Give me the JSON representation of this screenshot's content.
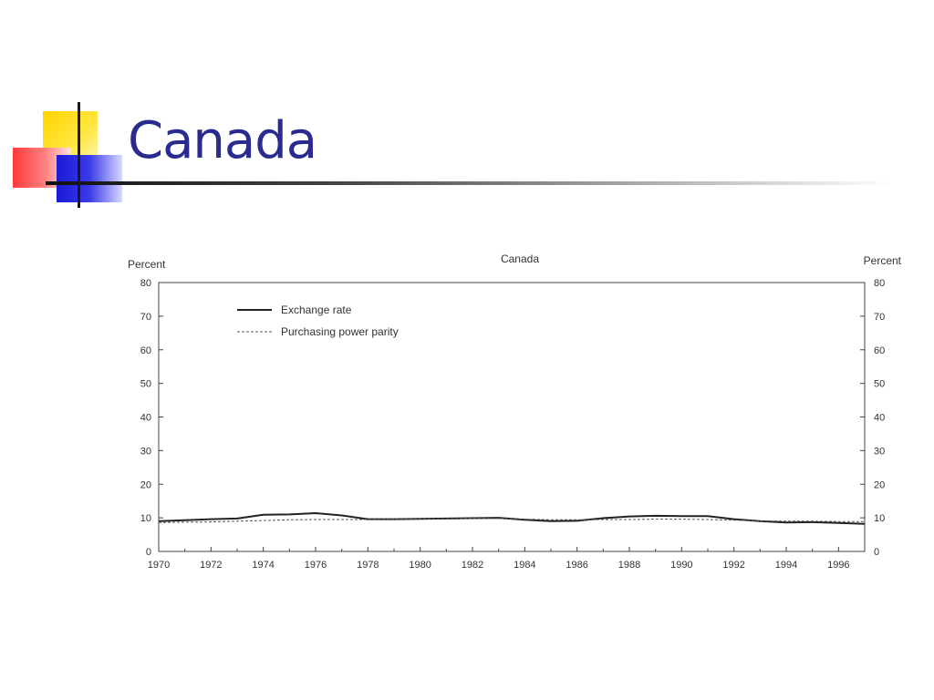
{
  "slide": {
    "title": "Canada"
  },
  "logo": {
    "colors": {
      "yellow": "#ffd400",
      "red": "#ff3a3a",
      "blue": "#1a1ad8"
    }
  },
  "chart_data": {
    "type": "line",
    "title": "Canada",
    "ylabel_left": "Percent",
    "ylabel_right": "Percent",
    "xlabel": "",
    "ylim": [
      0,
      80
    ],
    "xlim": [
      1970,
      1997
    ],
    "yticks": [
      "0",
      "10",
      "20",
      "30",
      "40",
      "50",
      "60",
      "70",
      "80"
    ],
    "xticks": [
      "1970",
      "1972",
      "1974",
      "1976",
      "1978",
      "1980",
      "1982",
      "1984",
      "1986",
      "1988",
      "1990",
      "1992",
      "1994",
      "1996"
    ],
    "grid": false,
    "legend_position": "top-left",
    "series": [
      {
        "name": "Exchange rate",
        "style": "solid",
        "color": "#222222",
        "x": [
          1970,
          1971,
          1972,
          1973,
          1974,
          1975,
          1976,
          1977,
          1978,
          1979,
          1980,
          1981,
          1982,
          1983,
          1984,
          1985,
          1986,
          1987,
          1988,
          1989,
          1990,
          1991,
          1992,
          1993,
          1994,
          1995,
          1996,
          1997
        ],
        "values": [
          9.0,
          9.3,
          9.6,
          9.8,
          10.9,
          11.0,
          11.4,
          10.7,
          9.6,
          9.6,
          9.7,
          9.8,
          9.9,
          10.0,
          9.4,
          9.0,
          9.1,
          9.9,
          10.4,
          10.6,
          10.5,
          10.5,
          9.6,
          9.0,
          8.6,
          8.7,
          8.5,
          8.2
        ]
      },
      {
        "name": "Purchasing power parity",
        "style": "dashed",
        "color": "#555555",
        "x": [
          1970,
          1971,
          1972,
          1973,
          1974,
          1975,
          1976,
          1977,
          1978,
          1979,
          1980,
          1981,
          1982,
          1983,
          1984,
          1985,
          1986,
          1987,
          1988,
          1989,
          1990,
          1991,
          1992,
          1993,
          1994,
          1995,
          1996,
          1997
        ],
        "values": [
          8.6,
          8.7,
          8.8,
          9.0,
          9.2,
          9.4,
          9.5,
          9.5,
          9.5,
          9.6,
          9.7,
          9.7,
          9.8,
          9.8,
          9.6,
          9.4,
          9.4,
          9.5,
          9.5,
          9.6,
          9.6,
          9.5,
          9.3,
          9.1,
          9.0,
          9.0,
          8.9,
          8.9
        ]
      }
    ]
  }
}
